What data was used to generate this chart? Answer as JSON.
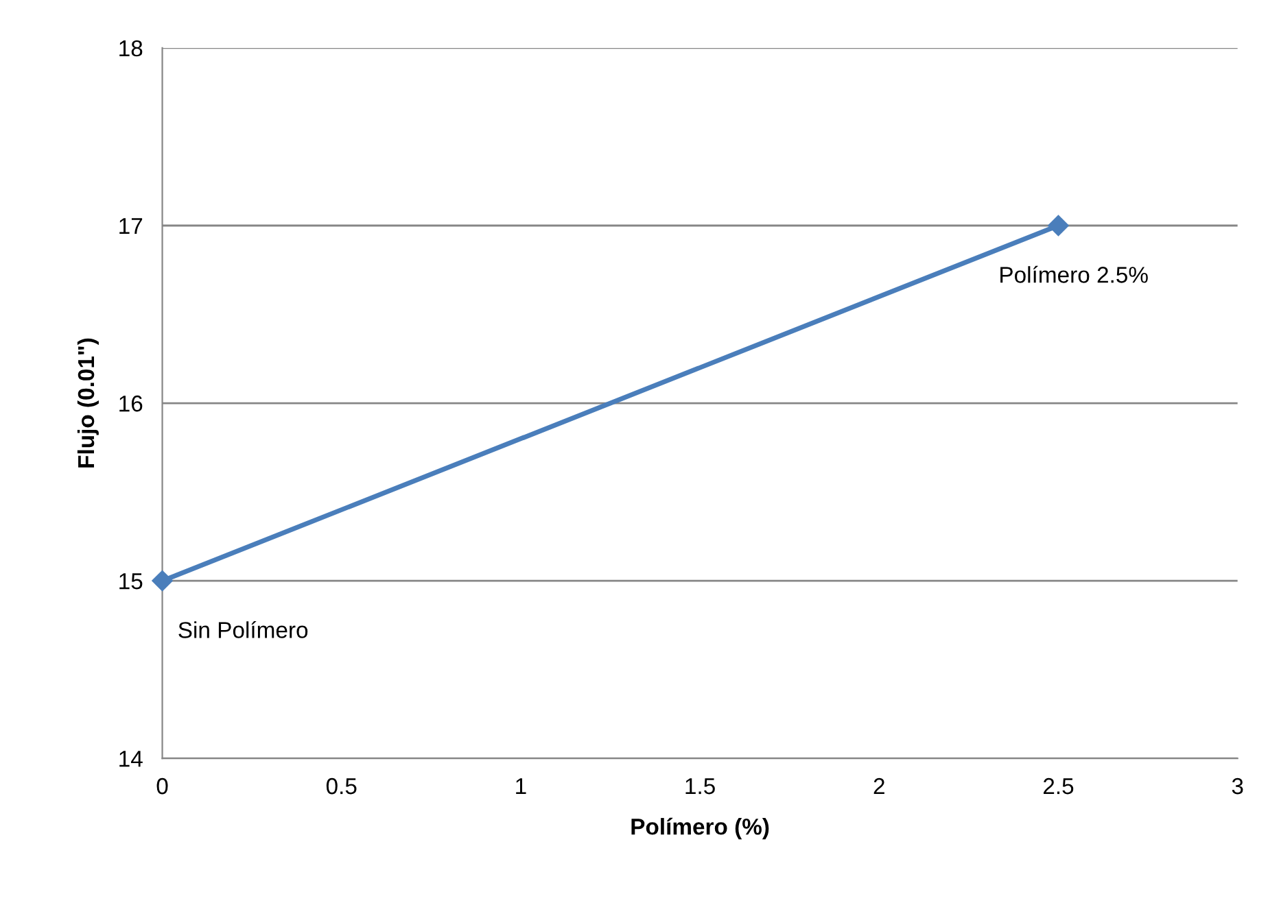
{
  "chart_data": {
    "type": "line",
    "xlabel": "Polímero (%)",
    "ylabel": "Flujo (0.01\")",
    "x": [
      0,
      2.5
    ],
    "series": [
      {
        "color": "#4a7ebb",
        "values": [
          15,
          17
        ]
      }
    ],
    "xlim": [
      0,
      3
    ],
    "xticks": [
      0,
      0.5,
      1,
      1.5,
      2,
      2.5,
      3
    ],
    "ylim": [
      14,
      18
    ],
    "yticks": [
      14,
      15,
      16,
      17,
      18
    ],
    "grid": "y",
    "marker": "diamond",
    "line_style": "solid",
    "legend": false,
    "annotations": [
      {
        "text": "Sin Polímero",
        "x": 0,
        "y": 15
      },
      {
        "text": "Polímero 2.5%",
        "x": 2.5,
        "y": 17
      }
    ]
  }
}
